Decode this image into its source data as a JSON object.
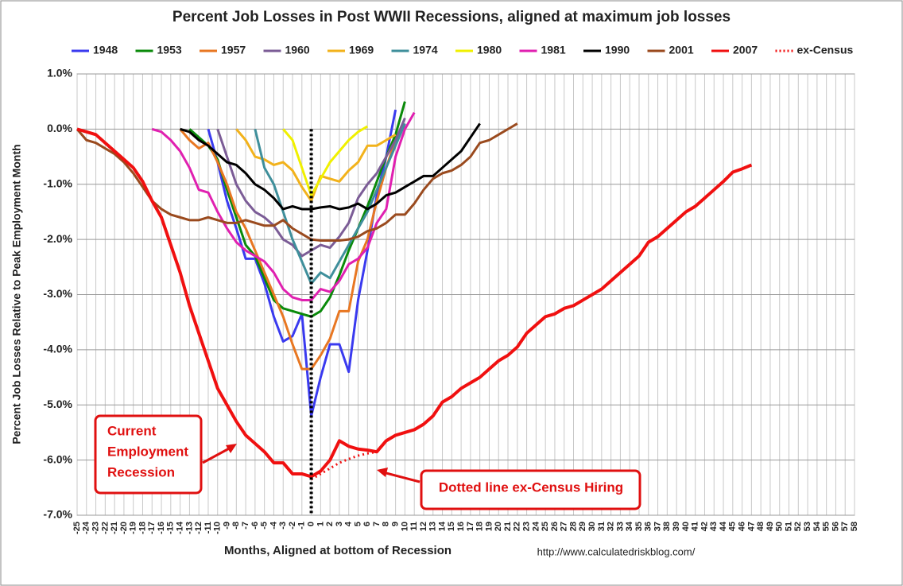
{
  "chart_data": {
    "type": "line",
    "title": "Percent Job Losses in Post WWII Recessions, aligned at maximum job losses",
    "x_label": "Months, Aligned at bottom of Recession",
    "y_label": "Percent Job Losses Relative to Peak Employment Month",
    "source": "http://www.calculatedriskblog.com/",
    "xlim": [
      -25,
      58
    ],
    "xticks": [
      -25,
      -24,
      -23,
      -22,
      -21,
      -20,
      -19,
      -18,
      -17,
      -16,
      -15,
      -14,
      -13,
      -12,
      -11,
      -10,
      -9,
      -8,
      -7,
      -6,
      -5,
      -4,
      -3,
      -2,
      -1,
      0,
      1,
      2,
      3,
      4,
      5,
      6,
      7,
      8,
      9,
      10,
      11,
      12,
      13,
      14,
      15,
      16,
      17,
      18,
      19,
      20,
      21,
      22,
      23,
      24,
      25,
      26,
      27,
      28,
      29,
      30,
      31,
      32,
      33,
      34,
      35,
      36,
      37,
      38,
      39,
      40,
      41,
      42,
      43,
      44,
      45,
      46,
      47,
      48,
      49,
      50,
      51,
      52,
      53,
      54,
      55,
      56,
      57,
      58
    ],
    "ylim": [
      -7.0,
      1.0
    ],
    "yticks": [
      {
        "value": -7.0,
        "label": "-7.0%"
      },
      {
        "value": -6.0,
        "label": "-6.0%"
      },
      {
        "value": -5.0,
        "label": "-5.0%"
      },
      {
        "value": -4.0,
        "label": "-4.0%"
      },
      {
        "value": -3.0,
        "label": "-3.0%"
      },
      {
        "value": -2.0,
        "label": "-2.0%"
      },
      {
        "value": -1.0,
        "label": "-1.0%"
      },
      {
        "value": 0.0,
        "label": "0.0%"
      },
      {
        "value": 1.0,
        "label": "1.0%"
      }
    ],
    "grid": true,
    "reference_line_x": 0,
    "series": [
      {
        "name": "1948",
        "color": "#3a3aef",
        "x": [
          -11,
          -10,
          -9,
          -8,
          -7,
          -6,
          -5,
          -4,
          -3,
          -2,
          -1,
          0,
          1,
          2,
          3,
          4,
          5,
          6,
          7,
          8,
          9
        ],
        "values": [
          0,
          -0.6,
          -1.3,
          -1.8,
          -2.35,
          -2.35,
          -2.8,
          -3.4,
          -3.85,
          -3.75,
          -3.35,
          -5.2,
          -4.5,
          -3.9,
          -3.9,
          -4.4,
          -3.1,
          -2.2,
          -1.2,
          -0.5,
          0.35
        ]
      },
      {
        "name": "1953",
        "color": "#0a8a0a",
        "x": [
          -13,
          -12,
          -11,
          -10,
          -9,
          -8,
          -7,
          -6,
          -5,
          -4,
          -3,
          -2,
          -1,
          0,
          1,
          2,
          3,
          4,
          5,
          6,
          7,
          8,
          9,
          10
        ],
        "values": [
          0,
          -0.15,
          -0.3,
          -0.55,
          -1.1,
          -1.6,
          -2.1,
          -2.3,
          -2.7,
          -3.1,
          -3.25,
          -3.3,
          -3.35,
          -3.4,
          -3.3,
          -3.05,
          -2.65,
          -2.2,
          -1.8,
          -1.4,
          -0.95,
          -0.5,
          -0.1,
          0.5
        ]
      },
      {
        "name": "1957",
        "color": "#e87722",
        "x": [
          -14,
          -13,
          -12,
          -11,
          -10,
          -9,
          -8,
          -7,
          -6,
          -5,
          -4,
          -3,
          -2,
          -1,
          0,
          1,
          2,
          3,
          4,
          5,
          6,
          7,
          8,
          9
        ],
        "values": [
          0,
          -0.2,
          -0.35,
          -0.25,
          -0.6,
          -1.0,
          -1.5,
          -1.8,
          -2.2,
          -2.6,
          -3.0,
          -3.4,
          -3.9,
          -4.35,
          -4.35,
          -4.1,
          -3.8,
          -3.3,
          -3.3,
          -2.4,
          -2.0,
          -1.3,
          -0.7,
          -0.2
        ]
      },
      {
        "name": "1960",
        "color": "#7b5c96",
        "x": [
          -10,
          -9,
          -8,
          -7,
          -6,
          -5,
          -4,
          -3,
          -2,
          -1,
          0,
          1,
          2,
          3,
          4,
          5,
          6,
          7,
          8,
          9,
          10
        ],
        "values": [
          0,
          -0.5,
          -1.0,
          -1.3,
          -1.5,
          -1.6,
          -1.75,
          -2.0,
          -2.1,
          -2.3,
          -2.2,
          -2.1,
          -2.15,
          -1.95,
          -1.7,
          -1.25,
          -1.0,
          -0.8,
          -0.5,
          -0.2,
          0.2
        ]
      },
      {
        "name": "1969",
        "color": "#f2b21b",
        "x": [
          -8,
          -7,
          -6,
          -5,
          -4,
          -3,
          -2,
          -1,
          0,
          1,
          2,
          3,
          4,
          5,
          6,
          7,
          8,
          9
        ],
        "values": [
          0,
          -0.2,
          -0.5,
          -0.55,
          -0.65,
          -0.6,
          -0.75,
          -1.05,
          -1.3,
          -0.85,
          -0.9,
          -0.95,
          -0.75,
          -0.6,
          -0.3,
          -0.3,
          -0.2,
          -0.1
        ]
      },
      {
        "name": "1974",
        "color": "#3f8f9b",
        "x": [
          -6,
          -5,
          -4,
          -3,
          -2,
          -1,
          0,
          1,
          2,
          3,
          4,
          5,
          6,
          7,
          8,
          9,
          10
        ],
        "values": [
          0,
          -0.7,
          -1.0,
          -1.5,
          -2.0,
          -2.4,
          -2.8,
          -2.6,
          -2.7,
          -2.4,
          -2.1,
          -1.8,
          -1.5,
          -1.1,
          -0.7,
          -0.3,
          0.1
        ]
      },
      {
        "name": "1980",
        "color": "#f0f000",
        "x": [
          -3,
          -2,
          -1,
          0,
          1,
          2,
          3,
          4,
          5,
          6
        ],
        "values": [
          0,
          -0.2,
          -0.7,
          -1.2,
          -0.9,
          -0.6,
          -0.4,
          -0.2,
          -0.05,
          0.05
        ]
      },
      {
        "name": "1981",
        "color": "#e020b0",
        "x": [
          -17,
          -16,
          -15,
          -14,
          -13,
          -12,
          -11,
          -10,
          -9,
          -8,
          -7,
          -6,
          -5,
          -4,
          -3,
          -2,
          -1,
          0,
          1,
          2,
          3,
          4,
          5,
          6,
          7,
          8,
          9,
          10,
          11
        ],
        "values": [
          0,
          -0.05,
          -0.2,
          -0.4,
          -0.7,
          -1.1,
          -1.15,
          -1.5,
          -1.8,
          -2.05,
          -2.2,
          -2.3,
          -2.4,
          -2.6,
          -2.9,
          -3.05,
          -3.1,
          -3.1,
          -2.9,
          -2.95,
          -2.75,
          -2.45,
          -2.35,
          -2.15,
          -1.7,
          -1.45,
          -0.5,
          0,
          0.3
        ]
      },
      {
        "name": "1990",
        "color": "#000000",
        "x": [
          -14,
          -13,
          -12,
          -11,
          -10,
          -9,
          -8,
          -7,
          -6,
          -5,
          -4,
          -3,
          -2,
          -1,
          0,
          1,
          2,
          3,
          4,
          5,
          6,
          7,
          8,
          9,
          10,
          11,
          12,
          13,
          14,
          15,
          16,
          17,
          18
        ],
        "values": [
          0,
          -0.05,
          -0.2,
          -0.3,
          -0.45,
          -0.6,
          -0.65,
          -0.8,
          -1.0,
          -1.1,
          -1.25,
          -1.45,
          -1.4,
          -1.45,
          -1.45,
          -1.42,
          -1.4,
          -1.45,
          -1.42,
          -1.35,
          -1.45,
          -1.35,
          -1.2,
          -1.15,
          -1.05,
          -0.95,
          -0.85,
          -0.85,
          -0.7,
          -0.55,
          -0.4,
          -0.15,
          0.1
        ]
      },
      {
        "name": "2001",
        "color": "#9a4a1e",
        "x": [
          -25,
          -24,
          -23,
          -22,
          -21,
          -20,
          -19,
          -18,
          -17,
          -16,
          -15,
          -14,
          -13,
          -12,
          -11,
          -10,
          -9,
          -8,
          -7,
          -6,
          -5,
          -4,
          -3,
          -2,
          -1,
          0,
          1,
          2,
          3,
          4,
          5,
          6,
          7,
          8,
          9,
          10,
          11,
          12,
          13,
          14,
          15,
          16,
          17,
          18,
          19,
          20,
          21,
          22
        ],
        "values": [
          0,
          -0.2,
          -0.25,
          -0.35,
          -0.45,
          -0.6,
          -0.8,
          -1.05,
          -1.3,
          -1.45,
          -1.55,
          -1.6,
          -1.65,
          -1.65,
          -1.6,
          -1.65,
          -1.7,
          -1.7,
          -1.65,
          -1.7,
          -1.75,
          -1.75,
          -1.65,
          -1.8,
          -1.9,
          -2.0,
          -2.02,
          -2.02,
          -2.02,
          -2.0,
          -1.95,
          -1.85,
          -1.8,
          -1.7,
          -1.55,
          -1.55,
          -1.35,
          -1.1,
          -0.9,
          -0.8,
          -0.75,
          -0.65,
          -0.5,
          -0.25,
          -0.2,
          -0.1,
          0,
          0.1
        ]
      },
      {
        "name": "2007",
        "color": "#f01010",
        "x": [
          -25,
          -24,
          -23,
          -22,
          -21,
          -20,
          -19,
          -18,
          -17,
          -16,
          -15,
          -14,
          -13,
          -12,
          -11,
          -10,
          -9,
          -8,
          -7,
          -6,
          -5,
          -4,
          -3,
          -2,
          -1,
          0,
          1,
          2,
          3,
          4,
          5,
          6,
          7,
          8,
          9,
          10,
          11,
          12,
          13,
          14,
          15,
          16,
          17,
          18,
          19,
          20,
          21,
          22,
          23,
          24,
          25,
          26,
          27,
          28,
          29,
          30,
          31,
          32,
          33,
          34,
          35,
          36,
          37,
          38,
          39,
          40,
          41,
          42,
          43,
          44,
          45,
          46,
          47
        ],
        "values": [
          0,
          -0.05,
          -0.1,
          -0.25,
          -0.4,
          -0.55,
          -0.7,
          -0.95,
          -1.3,
          -1.6,
          -2.1,
          -2.6,
          -3.2,
          -3.7,
          -4.2,
          -4.7,
          -5.0,
          -5.3,
          -5.55,
          -5.7,
          -5.85,
          -6.05,
          -6.05,
          -6.25,
          -6.25,
          -6.3,
          -6.2,
          -6.0,
          -5.65,
          -5.75,
          -5.8,
          -5.82,
          -5.85,
          -5.65,
          -5.55,
          -5.5,
          -5.45,
          -5.35,
          -5.2,
          -4.95,
          -4.85,
          -4.7,
          -4.6,
          -4.5,
          -4.35,
          -4.2,
          -4.1,
          -3.95,
          -3.7,
          -3.55,
          -3.4,
          -3.35,
          -3.25,
          -3.2,
          -3.1,
          -3.0,
          -2.9,
          -2.75,
          -2.6,
          -2.45,
          -2.3,
          -2.05,
          -1.95,
          -1.8,
          -1.65,
          -1.5,
          -1.4,
          -1.25,
          -1.1,
          -0.95,
          -0.78,
          -0.72,
          -0.65
        ]
      },
      {
        "name": "ex-Census",
        "color": "#f01010",
        "style": "dotted",
        "x": [
          0,
          1,
          2,
          3,
          4,
          5,
          6,
          7
        ],
        "values": [
          -6.35,
          -6.25,
          -6.15,
          -6.05,
          -5.98,
          -5.92,
          -5.88,
          -5.85
        ]
      }
    ],
    "annotations": [
      {
        "lines": [
          "Current",
          "Employment",
          "Recession"
        ]
      },
      {
        "lines": [
          "Dotted line ex-Census Hiring"
        ]
      }
    ]
  }
}
